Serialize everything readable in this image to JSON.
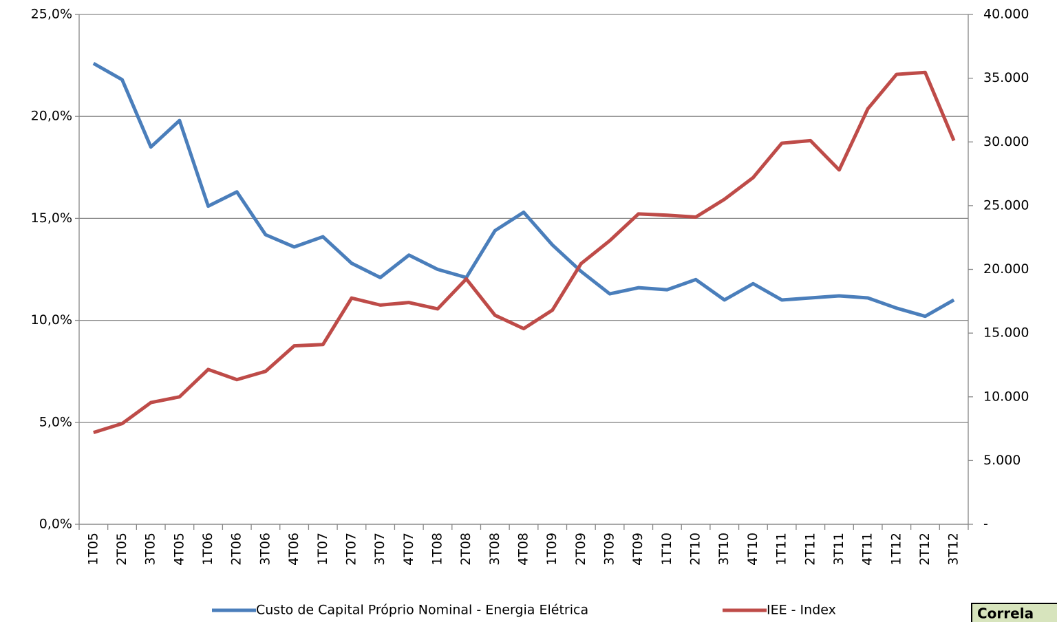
{
  "chart_data": {
    "type": "line",
    "categories": [
      "1T05",
      "2T05",
      "3T05",
      "4T05",
      "1T06",
      "2T06",
      "3T06",
      "4T06",
      "1T07",
      "2T07",
      "3T07",
      "4T07",
      "1T08",
      "2T08",
      "3T08",
      "4T08",
      "1T09",
      "2T09",
      "3T09",
      "4T09",
      "1T10",
      "2T10",
      "3T10",
      "4T10",
      "1T11",
      "2T11",
      "3T11",
      "4T11",
      "1T12",
      "2T12",
      "3T12"
    ],
    "series": [
      {
        "name": "Custo de Capital Próprio Nominal - Energia Elétrica",
        "color": "#4a7ebb",
        "values": [
          22.6,
          21.8,
          18.5,
          19.8,
          15.6,
          16.3,
          14.2,
          13.6,
          14.1,
          12.8,
          12.1,
          13.2,
          12.5,
          12.1,
          14.4,
          15.3,
          13.7,
          12.4,
          11.3,
          11.6,
          11.5,
          12.0,
          11.0,
          11.8,
          11.0,
          11.1,
          11.2,
          11.1,
          10.6,
          10.2,
          11.0
        ]
      },
      {
        "name": "IEE - Index",
        "color": "#be4b48",
        "axis": "y2",
        "values": [
          7200,
          7900,
          9550,
          10000,
          12150,
          11350,
          12000,
          14000,
          14100,
          17750,
          17200,
          17400,
          16900,
          19250,
          16400,
          15350,
          16800,
          20450,
          22250,
          24350,
          24250,
          24100,
          25500,
          27200,
          29900,
          30100,
          27800,
          32600,
          35300,
          35450,
          30100
        ]
      }
    ],
    "ylim": [
      0,
      25
    ],
    "yticks": [
      {
        "value": 0,
        "label": "0,0%"
      },
      {
        "value": 5,
        "label": "5,0%"
      },
      {
        "value": 10,
        "label": "10,0%"
      },
      {
        "value": 15,
        "label": "15,0%"
      },
      {
        "value": 20,
        "label": "20,0%"
      },
      {
        "value": 25,
        "label": "25,0%"
      }
    ],
    "y2lim": [
      0,
      40000
    ],
    "y2ticks": [
      {
        "value": 0,
        "label": "-"
      },
      {
        "value": 5000,
        "label": "5.000"
      },
      {
        "value": 10000,
        "label": "10.000"
      },
      {
        "value": 15000,
        "label": "15.000"
      },
      {
        "value": 20000,
        "label": "20.000"
      },
      {
        "value": 25000,
        "label": "25.000"
      },
      {
        "value": 30000,
        "label": "30.000"
      },
      {
        "value": 35000,
        "label": "35.000"
      },
      {
        "value": 40000,
        "label": "40.000"
      }
    ],
    "grid": true,
    "legend": "bottom",
    "annotation": "Correla"
  }
}
